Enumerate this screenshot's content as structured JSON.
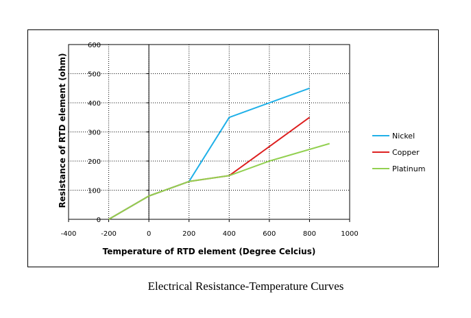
{
  "caption": "Electrical Resistance-Temperature Curves",
  "chart_data": {
    "type": "line",
    "title": "",
    "xlabel": "Temperature of RTD element (Degree Celcius)",
    "ylabel": "Resistance of RTD element (ohm)",
    "xlim": [
      -400,
      1000
    ],
    "ylim": [
      0,
      600
    ],
    "xticks": [
      -400,
      -200,
      0,
      200,
      400,
      600,
      800,
      1000
    ],
    "yticks": [
      0,
      100,
      200,
      300,
      400,
      500,
      600
    ],
    "grid": "dotted",
    "legend_position": "right",
    "series": [
      {
        "name": "Nickel",
        "color": "#1fb0e8",
        "points": [
          [
            -200,
            0
          ],
          [
            0,
            80
          ],
          [
            200,
            130
          ],
          [
            400,
            350
          ],
          [
            800,
            450
          ]
        ]
      },
      {
        "name": "Copper",
        "color": "#dd1f1f",
        "points": [
          [
            -200,
            0
          ],
          [
            0,
            80
          ],
          [
            200,
            130
          ],
          [
            400,
            150
          ],
          [
            600,
            250
          ],
          [
            800,
            350
          ]
        ]
      },
      {
        "name": "Platinum",
        "color": "#92d050",
        "points": [
          [
            -200,
            0
          ],
          [
            0,
            80
          ],
          [
            200,
            130
          ],
          [
            400,
            150
          ],
          [
            600,
            200
          ],
          [
            800,
            240
          ],
          [
            900,
            260
          ]
        ]
      }
    ]
  }
}
